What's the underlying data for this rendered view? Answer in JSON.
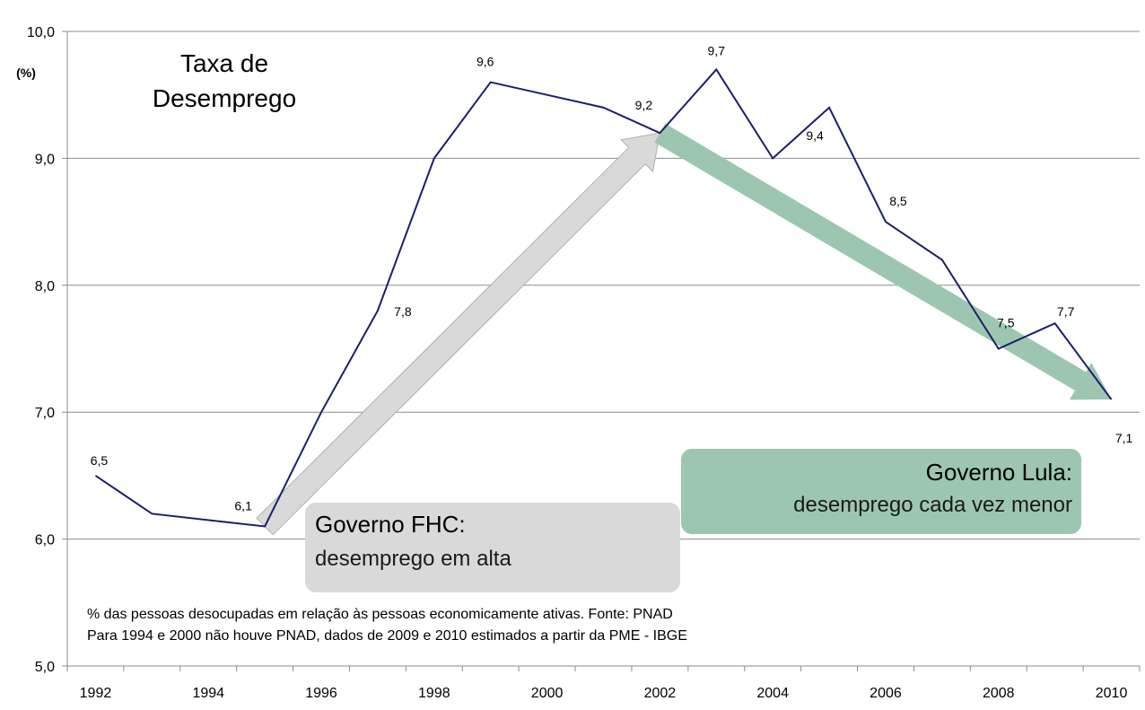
{
  "chart_data": {
    "type": "line",
    "title": "Taxa de Desemprego",
    "title_lines": [
      "Taxa de",
      "Desemprego"
    ],
    "ylabel": "(%)",
    "xlabel": "",
    "ylim": [
      5.0,
      10.0
    ],
    "yticks": [
      "10,0",
      "9,0",
      "8,0",
      "7,0",
      "6,0",
      "5,0"
    ],
    "ytick_values": [
      10,
      9,
      8,
      7,
      6,
      5
    ],
    "xtick_labels": [
      "1992",
      "1994",
      "1996",
      "1998",
      "2000",
      "2002",
      "2004",
      "2006",
      "2008",
      "2010"
    ],
    "xtick_years": [
      1992,
      1994,
      1996,
      1998,
      2000,
      2002,
      2004,
      2006,
      2008,
      2010
    ],
    "grid": true,
    "series": [
      {
        "name": "Taxa de Desemprego",
        "color": "#1a1f6e",
        "x": [
          1992,
          1993,
          1995,
          1996,
          1997,
          1998,
          1999,
          2001,
          2002,
          2003,
          2004,
          2005,
          2006,
          2007,
          2008,
          2009,
          2010
        ],
        "values": [
          6.5,
          6.2,
          6.1,
          7.0,
          7.8,
          9.0,
          9.6,
          9.4,
          9.2,
          9.7,
          9.0,
          9.4,
          8.5,
          8.2,
          7.5,
          7.7,
          7.1
        ]
      }
    ],
    "data_labels": [
      {
        "year": 1992,
        "value": 6.5,
        "text": "6,5"
      },
      {
        "year": 1995,
        "value": 6.1,
        "text": "6,1"
      },
      {
        "year": 1997,
        "value": 7.8,
        "text": "7,8"
      },
      {
        "year": 1999,
        "value": 9.6,
        "text": "9,6"
      },
      {
        "year": 2002,
        "value": 9.2,
        "text": "9,2"
      },
      {
        "year": 2003,
        "value": 9.7,
        "text": "9,7"
      },
      {
        "year": 2005,
        "value": 9.4,
        "text": "9,4"
      },
      {
        "year": 2006,
        "value": 8.5,
        "text": "8,5"
      },
      {
        "year": 2008,
        "value": 7.5,
        "text": "7,5"
      },
      {
        "year": 2009,
        "value": 7.7,
        "text": "7,7"
      },
      {
        "year": 2010,
        "value": 7.1,
        "text": "7,1"
      }
    ],
    "annotations": {
      "fhc": {
        "title": "Governo FHC:",
        "subtitle": "desemprego em alta",
        "color": "#d9d9d9",
        "arrow_from": {
          "year": 1995,
          "value": 6.1
        },
        "arrow_to": {
          "year": 2002,
          "value": 9.2
        }
      },
      "lula": {
        "title": "Governo Lula:",
        "subtitle": "desemprego cada vez menor",
        "color": "#9dc6b0",
        "arrow_from": {
          "year": 2002,
          "value": 9.2
        },
        "arrow_to": {
          "year": 2010,
          "value": 7.1
        }
      }
    },
    "notes": [
      "% das pessoas desocupadas em relação às pessoas economicamente ativas.  Fonte: PNAD",
      "Para 1994 e 2000 não houve PNAD, dados de 2009 e 2010 estimados a partir da PME - IBGE"
    ]
  }
}
